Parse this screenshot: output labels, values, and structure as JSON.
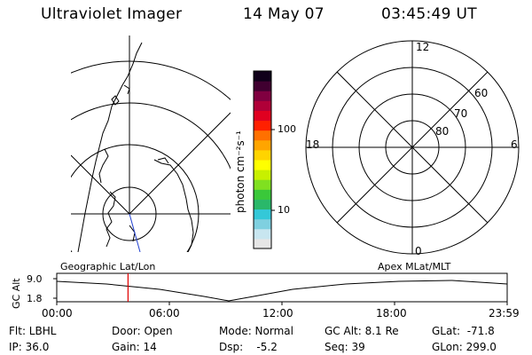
{
  "header": {
    "instrument": "Ultraviolet Imager",
    "date": "14 May 07",
    "time": "03:45:49 UT"
  },
  "colorbar": {
    "unit_label": "photon cm⁻²s⁻¹",
    "tick_high": "100",
    "tick_low": "10",
    "colors": [
      "#e6e6e6",
      "#c8e6f0",
      "#7fd0e0",
      "#34c8d8",
      "#2ab86a",
      "#3ac83a",
      "#80e020",
      "#c8f000",
      "#ffff00",
      "#ffd400",
      "#ffa500",
      "#ff7000",
      "#ff2000",
      "#e00020",
      "#b00038",
      "#800040",
      "#400030",
      "#10001a"
    ]
  },
  "polar_plot": {
    "mlt_labels": [
      "12",
      "18",
      "6",
      "0"
    ],
    "lat_labels": [
      "60",
      "70",
      "80"
    ]
  },
  "strip_chart": {
    "left_title": "Geographic Lat/Lon",
    "right_title": "Apex MLat/MLT",
    "axis_label": "GC Alt",
    "ytick_high": "9.0",
    "ytick_low": "1.8",
    "time_ticks": [
      "00:00",
      "06:00",
      "12:00",
      "18:00",
      "23:59"
    ],
    "current_time_fraction": 0.1583,
    "marker_color": "#e00000"
  },
  "footer": {
    "flt": "Flt: LBHL",
    "ip": "IP: 36.0",
    "door": "Door: Open",
    "gain": "Gain: 14",
    "mode": "Mode: Normal",
    "dsp": "Dsp:    -5.2",
    "gcalt": "GC Alt: 8.1 Re",
    "seq": "Seq: 39",
    "glat": "GLat:  -71.8",
    "glon": "GLon: 299.0"
  }
}
